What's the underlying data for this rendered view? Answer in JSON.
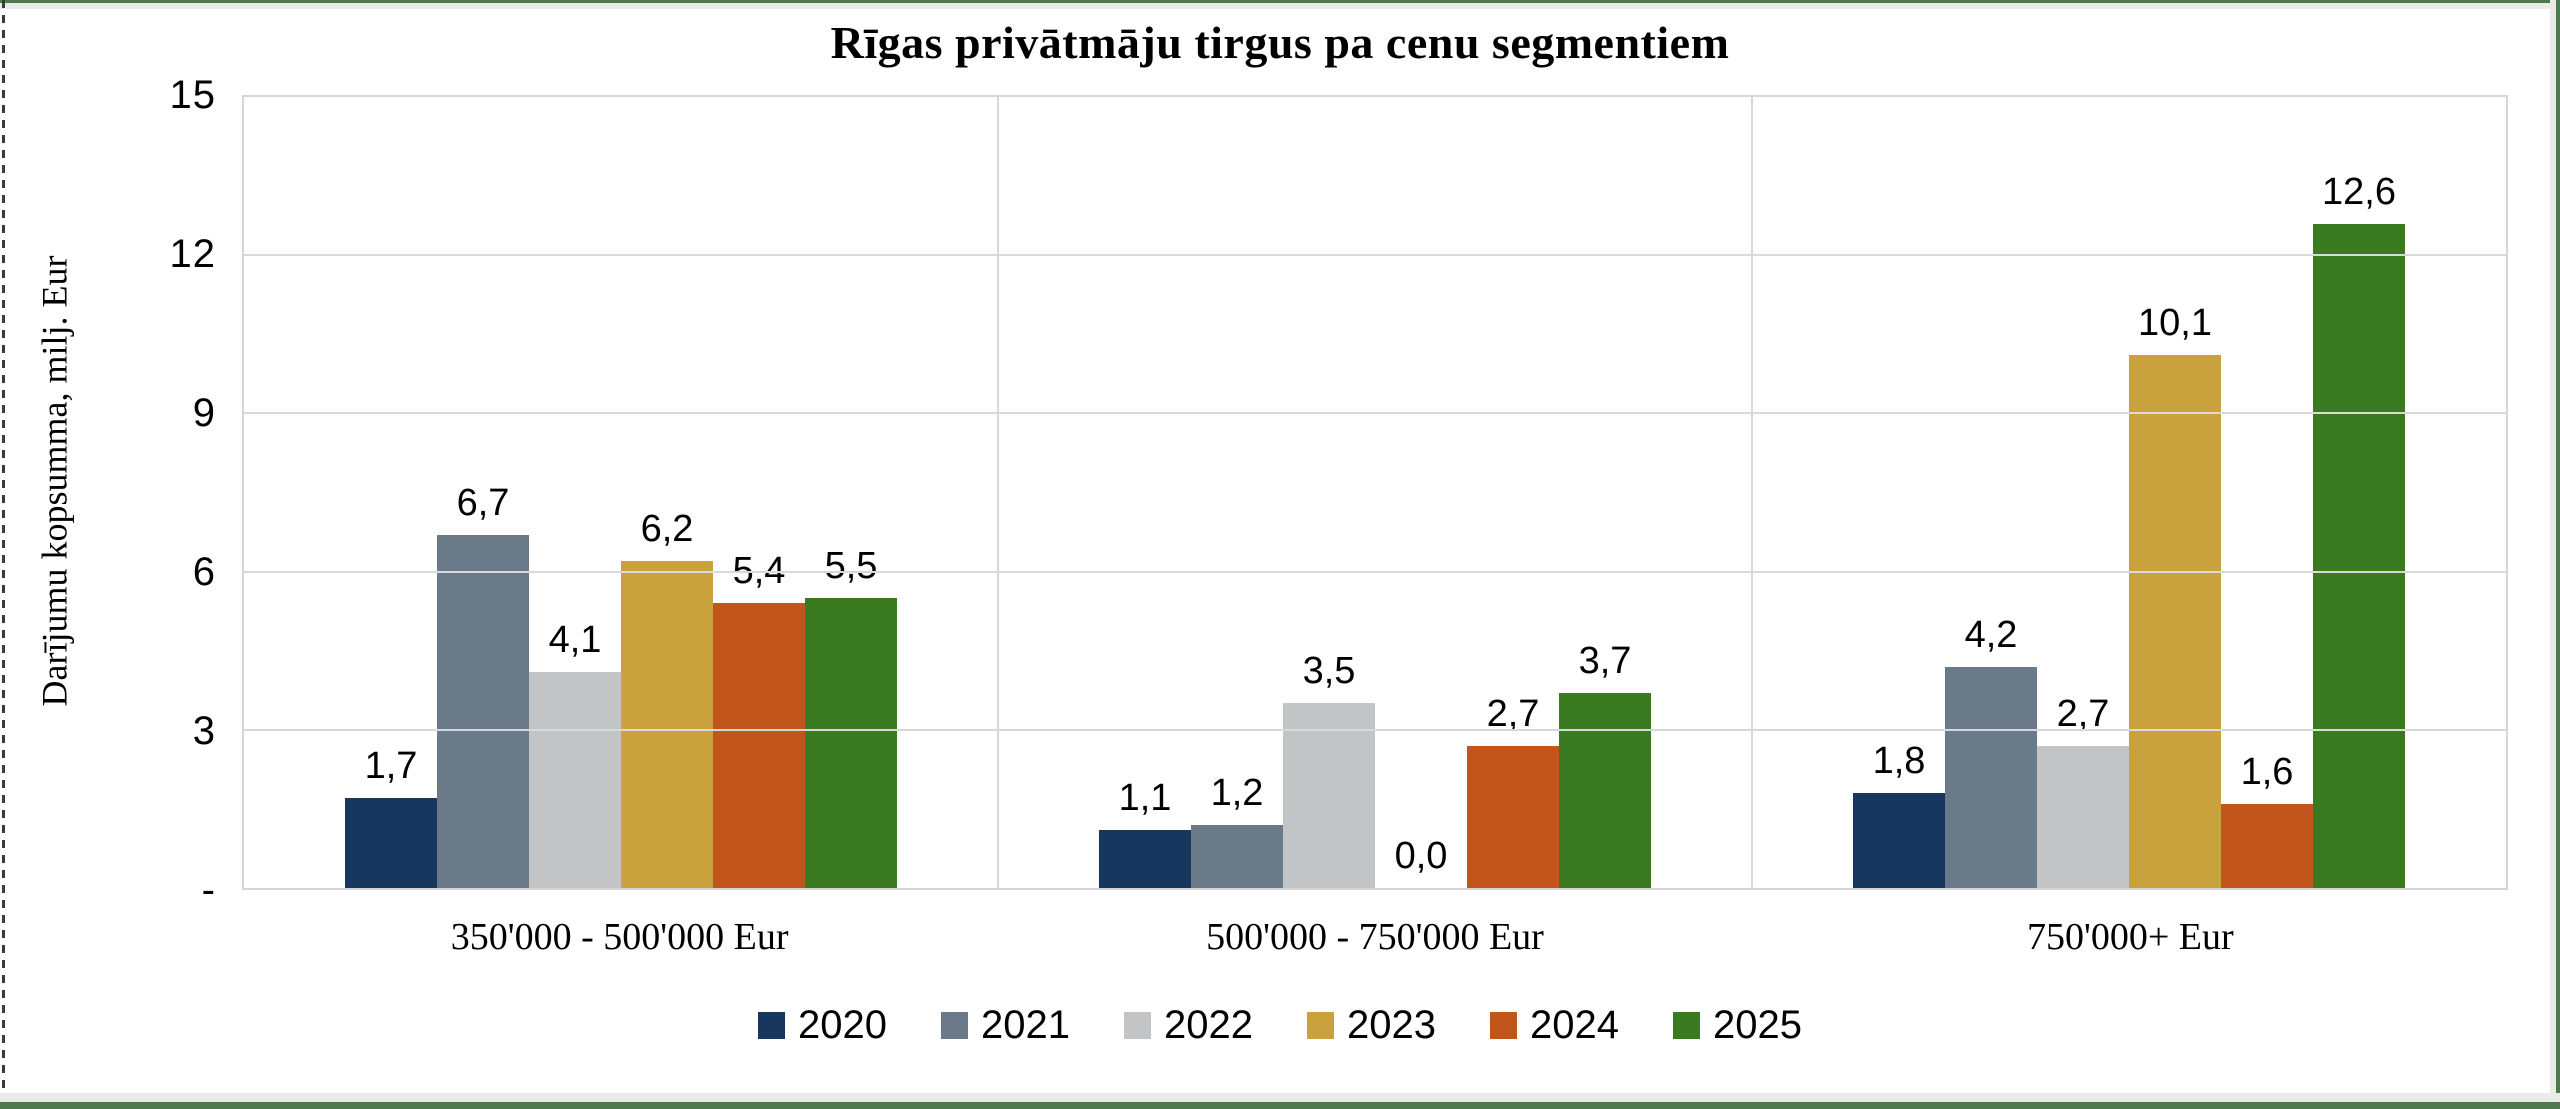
{
  "chart_data": {
    "type": "bar",
    "title": "Rīgas privātmāju tirgus pa cenu segmentiem",
    "xlabel": "",
    "ylabel": "Darījumu kopsumma, milj. Eur",
    "ylim": [
      0,
      15
    ],
    "grid": true,
    "legend_position": "bottom",
    "decimal_separator": ",",
    "yticks": [
      {
        "value": 15,
        "label": "15"
      },
      {
        "value": 12,
        "label": "12"
      },
      {
        "value": 9,
        "label": "9"
      },
      {
        "value": 6,
        "label": "6"
      },
      {
        "value": 3,
        "label": "3"
      },
      {
        "value": 0,
        "label": "-"
      }
    ],
    "categories": [
      "350'000 - 500'000 Eur",
      "500'000 - 750'000 Eur",
      "750'000+ Eur"
    ],
    "series": [
      {
        "name": "2020",
        "color": "#17375E",
        "values": [
          1.7,
          1.1,
          1.8
        ],
        "labels": [
          "1,7",
          "1,1",
          "1,8"
        ]
      },
      {
        "name": "2021",
        "color": "#6B7A88",
        "values": [
          6.7,
          1.2,
          4.2
        ],
        "labels": [
          "6,7",
          "1,2",
          "4,2"
        ]
      },
      {
        "name": "2022",
        "color": "#C3C4C6",
        "values": [
          4.1,
          3.5,
          2.7
        ],
        "labels": [
          "4,1",
          "3,5",
          "2,7"
        ]
      },
      {
        "name": "2023",
        "color": "#C9A23E",
        "values": [
          6.2,
          0.0,
          10.1
        ],
        "labels": [
          "6,2",
          "0,0",
          "10,1"
        ]
      },
      {
        "name": "2024",
        "color": "#C2551B",
        "values": [
          5.4,
          2.7,
          1.6
        ],
        "labels": [
          "5,4",
          "2,7",
          "1,6"
        ]
      },
      {
        "name": "2025",
        "color": "#3A7A21",
        "values": [
          5.5,
          3.7,
          12.6
        ],
        "labels": [
          "5,5",
          "3,7",
          "12,6"
        ]
      }
    ],
    "plot_colors": {
      "gridline": "#D9D9D9",
      "plot_border": "#D6D6D6",
      "frame_green": "#4F7A50",
      "frame_strip": "#E9EBE9"
    }
  }
}
